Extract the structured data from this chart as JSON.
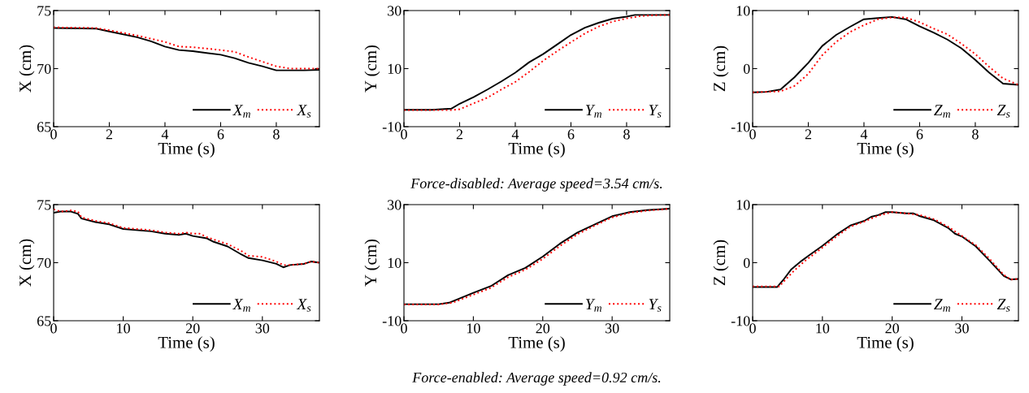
{
  "chart_data": [
    {
      "type": "line",
      "xlabel": "Time (s)",
      "ylabel": "X (cm)",
      "xlim": [
        0,
        9.55
      ],
      "xticks": [
        0,
        2,
        4,
        6,
        8
      ],
      "ylim": [
        65,
        75
      ],
      "yticks": [
        65,
        70,
        75
      ],
      "legend": "bottom right",
      "series": [
        {
          "name": "X$_{m}$",
          "color": "#000000",
          "line_style": "solid",
          "x": [
            0,
            1.5,
            2,
            3,
            3.5,
            4,
            4.5,
            5,
            6,
            6.5,
            7,
            7.5,
            8,
            9,
            9.55
          ],
          "values": [
            73.5,
            73.45,
            73.2,
            72.7,
            72.35,
            71.9,
            71.6,
            71.5,
            71.2,
            70.9,
            70.5,
            70.2,
            69.85,
            69.85,
            69.9
          ]
        },
        {
          "name": "X$_{s}$",
          "color": "#ff0000",
          "line_style": "dotted",
          "x": [
            0,
            1.5,
            2,
            3,
            4,
            4.5,
            5,
            6,
            6.5,
            7,
            7.5,
            8,
            8.5,
            9,
            9.55
          ],
          "values": [
            73.55,
            73.5,
            73.3,
            72.85,
            72.3,
            71.9,
            71.85,
            71.6,
            71.45,
            71.0,
            70.6,
            70.2,
            70.0,
            70.0,
            70.0
          ]
        }
      ]
    },
    {
      "type": "line",
      "xlabel": "Time (s)",
      "ylabel": "Y (cm)",
      "xlim": [
        0,
        9.55
      ],
      "xticks": [
        0,
        2,
        4,
        6,
        8
      ],
      "ylim": [
        -10,
        30
      ],
      "yticks": [
        -10,
        10,
        30
      ],
      "legend": "bottom right",
      "annotations": [
        "Force-disabled: Average speed=3.54 cm/s."
      ],
      "series": [
        {
          "name": "Y$_{m}$",
          "color": "#000000",
          "line_style": "solid",
          "x": [
            0,
            1,
            1.7,
            2,
            2.5,
            3,
            3.5,
            4,
            4.5,
            5,
            5.5,
            6,
            6.5,
            7,
            7.5,
            8,
            8.3,
            9.55
          ],
          "values": [
            -4.2,
            -4.2,
            -3.8,
            -2.1,
            0.2,
            2.8,
            5.6,
            8.6,
            12.2,
            15.0,
            18.3,
            21.6,
            24.1,
            25.8,
            27.2,
            27.9,
            28.5,
            28.5
          ]
        },
        {
          "name": "Y$_{s}$",
          "color": "#ff0000",
          "line_style": "dotted",
          "x": [
            0,
            1.7,
            2,
            2.5,
            3,
            3.5,
            4,
            4.5,
            5,
            5.5,
            6,
            6.5,
            7,
            7.5,
            8,
            8.5,
            9,
            9.55
          ],
          "values": [
            -4.3,
            -4.3,
            -4.0,
            -2.0,
            0.0,
            2.8,
            5.4,
            8.9,
            12.7,
            16.0,
            19.1,
            22.1,
            24.5,
            26.2,
            27.3,
            28.1,
            28.4,
            28.5
          ]
        }
      ]
    },
    {
      "type": "line",
      "xlabel": "Time (s)",
      "ylabel": "Z (cm)",
      "xlim": [
        0,
        9.55
      ],
      "xticks": [
        0,
        2,
        4,
        6,
        8
      ],
      "ylim": [
        -10,
        10
      ],
      "yticks": [
        -10,
        0,
        10
      ],
      "legend": "bottom right",
      "series": [
        {
          "name": "Z$_{m}$",
          "color": "#000000",
          "line_style": "solid",
          "x": [
            0,
            0.5,
            1,
            1.5,
            2,
            2.5,
            3,
            3.5,
            4,
            4.5,
            5,
            5.5,
            6,
            6.5,
            7,
            7.5,
            8,
            8.5,
            9,
            9.55
          ],
          "values": [
            -4.1,
            -4.0,
            -3.6,
            -1.5,
            1.0,
            3.9,
            5.8,
            7.2,
            8.5,
            8.7,
            8.9,
            8.5,
            7.3,
            6.2,
            5.0,
            3.5,
            1.5,
            -0.7,
            -2.6,
            -2.8
          ]
        },
        {
          "name": "Z$_{s}$",
          "color": "#ff0000",
          "line_style": "dotted",
          "x": [
            0,
            1,
            1.5,
            2,
            2.5,
            3,
            3.5,
            4,
            4.5,
            5,
            5.5,
            6,
            6.5,
            7,
            7.5,
            8,
            8.5,
            9,
            9.55
          ],
          "values": [
            -4.1,
            -3.9,
            -3.0,
            -0.9,
            2.3,
            4.6,
            6.3,
            7.5,
            8.5,
            8.8,
            8.8,
            8.0,
            6.9,
            5.9,
            4.3,
            2.5,
            0.3,
            -1.7,
            -2.8
          ]
        }
      ]
    },
    {
      "type": "line",
      "xlabel": "Time (s)",
      "ylabel": "X (cm)",
      "xlim": [
        0,
        38.2
      ],
      "xticks": [
        0,
        10,
        20,
        30
      ],
      "ylim": [
        65,
        75
      ],
      "yticks": [
        65,
        70,
        75
      ],
      "legend": "bottom right",
      "series": [
        {
          "name": "X$_{m}$",
          "color": "#000000",
          "line_style": "solid",
          "x": [
            0,
            1,
            2.5,
            3.5,
            4,
            6,
            8,
            10,
            14,
            16,
            18,
            19,
            20,
            22,
            23,
            25,
            27,
            28,
            30,
            32,
            33,
            34,
            36,
            37,
            38.2
          ],
          "values": [
            74.3,
            74.4,
            74.4,
            74.2,
            73.8,
            73.5,
            73.3,
            72.9,
            72.7,
            72.5,
            72.4,
            72.5,
            72.3,
            72.1,
            71.8,
            71.4,
            70.7,
            70.4,
            70.2,
            69.9,
            69.6,
            69.8,
            69.9,
            70.1,
            70.0
          ]
        },
        {
          "name": "X$_{s}$",
          "color": "#ff0000",
          "line_style": "dotted",
          "x": [
            0,
            1,
            2.5,
            3.5,
            4,
            6,
            8,
            10,
            14,
            16,
            18,
            19,
            20,
            21,
            22,
            23,
            25,
            27,
            28,
            30,
            32,
            33,
            34,
            36,
            37,
            38.2
          ],
          "values": [
            74.6,
            74.4,
            74.5,
            74.4,
            73.9,
            73.6,
            73.4,
            73.0,
            72.8,
            72.6,
            72.5,
            72.6,
            72.5,
            72.5,
            72.2,
            72.0,
            71.6,
            71.0,
            70.6,
            70.5,
            70.1,
            69.8,
            69.8,
            69.9,
            70.1,
            70.0
          ]
        }
      ]
    },
    {
      "type": "line",
      "xlabel": "Time (s)",
      "ylabel": "Y (cm)",
      "xlim": [
        0,
        38.3
      ],
      "xticks": [
        0,
        10,
        20,
        30
      ],
      "ylim": [
        -10,
        30
      ],
      "yticks": [
        -10,
        10,
        30
      ],
      "legend": "bottom right",
      "annotations": [
        "Force-enabled: Average speed=0.92 cm/s."
      ],
      "series": [
        {
          "name": "Y$_{m}$",
          "color": "#000000",
          "line_style": "solid",
          "x": [
            0,
            5,
            6.5,
            10,
            12.5,
            15,
            17.5,
            20,
            22.5,
            25,
            27.5,
            30,
            32.5,
            35,
            38.3
          ],
          "values": [
            -4.3,
            -4.3,
            -3.8,
            -0.4,
            1.9,
            5.7,
            8.2,
            12.1,
            16.6,
            20.4,
            23.2,
            26.0,
            27.4,
            28.1,
            28.6
          ]
        },
        {
          "name": "Y$_{s}$",
          "color": "#ff0000",
          "line_style": "dotted",
          "x": [
            0,
            5,
            7,
            10,
            12.5,
            15,
            17.5,
            20,
            22.5,
            25,
            27.5,
            30,
            32.5,
            35,
            38.3
          ],
          "values": [
            -4.4,
            -4.4,
            -3.8,
            -1.0,
            1.3,
            5.0,
            7.6,
            11.3,
            15.8,
            19.8,
            22.8,
            25.6,
            27.2,
            27.9,
            28.6
          ]
        }
      ]
    },
    {
      "type": "line",
      "xlabel": "Time (s)",
      "ylabel": "Z (cm)",
      "xlim": [
        0,
        38.1
      ],
      "xticks": [
        0,
        10,
        20,
        30
      ],
      "ylim": [
        -10,
        10
      ],
      "yticks": [
        -10,
        0,
        10
      ],
      "legend": "bottom right",
      "series": [
        {
          "name": "Z$_{m}$",
          "color": "#000000",
          "line_style": "solid",
          "x": [
            0,
            3.5,
            4.5,
            5.5,
            7,
            8,
            10,
            12,
            14,
            16,
            17,
            18,
            19,
            20,
            22,
            23,
            24,
            26,
            28,
            29,
            30,
            32,
            34,
            36,
            37,
            38.1
          ],
          "values": [
            -4.2,
            -4.2,
            -2.8,
            -1.2,
            0.3,
            1.2,
            2.9,
            4.8,
            6.4,
            7.2,
            7.9,
            8.2,
            8.7,
            8.7,
            8.5,
            8.5,
            8.0,
            7.3,
            6.0,
            5.0,
            4.5,
            2.8,
            0.3,
            -2.3,
            -2.9,
            -2.8
          ]
        },
        {
          "name": "Z$_{s}$",
          "color": "#ff0000",
          "line_style": "dotted",
          "x": [
            0,
            3.8,
            4.8,
            6,
            7.5,
            10,
            12,
            14,
            16,
            18,
            20,
            22,
            24,
            26,
            28,
            30,
            32,
            34,
            36,
            37,
            38.1
          ],
          "values": [
            -4.1,
            -4.1,
            -2.8,
            -1.3,
            0.3,
            2.6,
            4.5,
            6.2,
            7.1,
            8.1,
            8.7,
            8.5,
            8.2,
            7.5,
            6.2,
            4.6,
            3.0,
            0.6,
            -2.1,
            -2.9,
            -2.8
          ]
        }
      ]
    }
  ]
}
